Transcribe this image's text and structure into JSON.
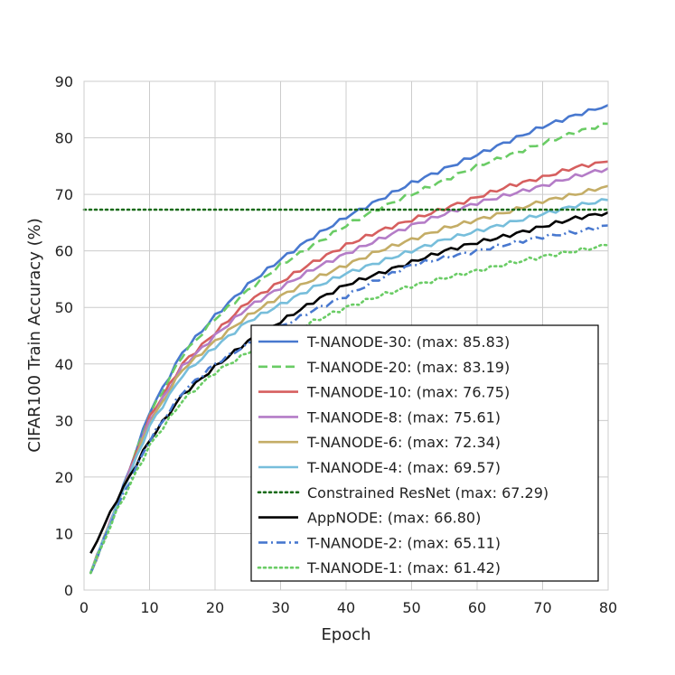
{
  "chart_data": {
    "type": "line",
    "title": "",
    "xlabel": "Epoch",
    "ylabel": "CIFAR100 Train Accuracy (%)",
    "xlim": [
      0,
      80
    ],
    "ylim": [
      0,
      90
    ],
    "xticks": [
      0,
      10,
      20,
      30,
      40,
      50,
      60,
      70,
      80
    ],
    "yticks": [
      0,
      10,
      20,
      30,
      40,
      50,
      60,
      70,
      80,
      90
    ],
    "grid": true,
    "legend_position": "lower-right",
    "x": [
      1,
      5,
      10,
      15,
      20,
      25,
      30,
      35,
      40,
      45,
      50,
      55,
      60,
      65,
      70,
      75,
      80
    ],
    "series": [
      {
        "name": "T-NANODE-30",
        "legend": "T-NANODE-30: (max: 85.83)",
        "color": "#4878cf",
        "dash": "solid",
        "values": [
          3.0,
          15.0,
          31.5,
          42.0,
          48.5,
          54.0,
          58.5,
          62.5,
          66.0,
          69.0,
          72.0,
          74.5,
          77.0,
          79.5,
          82.0,
          84.0,
          85.8
        ]
      },
      {
        "name": "T-NANODE-20",
        "legend": "T-NANODE-20: (max: 83.19)",
        "color": "#6acc65",
        "dash": "dashed",
        "values": [
          3.0,
          15.0,
          31.0,
          41.5,
          48.0,
          53.0,
          57.5,
          61.0,
          64.5,
          67.5,
          70.0,
          72.5,
          75.0,
          77.0,
          79.0,
          81.0,
          82.5
        ]
      },
      {
        "name": "T-NANODE-10",
        "legend": "T-NANODE-10: (max: 76.75)",
        "color": "#d65f5f",
        "dash": "solid",
        "values": [
          3.0,
          15.0,
          30.5,
          40.0,
          45.5,
          51.0,
          54.5,
          58.0,
          61.0,
          63.5,
          65.5,
          67.5,
          69.5,
          71.5,
          73.0,
          74.8,
          75.8
        ]
      },
      {
        "name": "T-NANODE-8",
        "legend": "T-NANODE-8: (max: 75.61)",
        "color": "#b47cc7",
        "dash": "solid",
        "values": [
          3.0,
          15.0,
          30.0,
          39.5,
          45.0,
          50.0,
          53.5,
          56.8,
          59.5,
          62.0,
          64.5,
          66.5,
          68.5,
          70.0,
          71.5,
          73.2,
          74.6
        ]
      },
      {
        "name": "T-NANODE-6",
        "legend": "T-NANODE-6: (max: 72.34)",
        "color": "#c4ad66",
        "dash": "solid",
        "values": [
          3.0,
          15.0,
          29.5,
          39.0,
          44.0,
          48.5,
          52.0,
          55.0,
          57.5,
          60.0,
          62.0,
          64.0,
          65.5,
          67.0,
          68.8,
          70.0,
          71.5
        ]
      },
      {
        "name": "T-NANODE-4",
        "legend": "T-NANODE-4: (max: 69.57)",
        "color": "#77bedb",
        "dash": "solid",
        "values": [
          3.0,
          15.0,
          29.0,
          38.0,
          43.0,
          47.5,
          50.5,
          53.5,
          56.0,
          58.0,
          60.0,
          62.0,
          63.5,
          65.0,
          66.5,
          68.0,
          69.0
        ]
      },
      {
        "name": "Constrained ResNet",
        "legend": "Constrained ResNet (max: 67.29)",
        "color": "#1a6b1a",
        "dash": "dotted",
        "values": [
          67.3,
          67.3,
          67.3,
          67.3,
          67.3,
          67.3,
          67.3,
          67.3,
          67.3,
          67.3,
          67.3,
          67.3,
          67.3,
          67.3,
          67.3,
          67.3,
          67.3
        ]
      },
      {
        "name": "AppNODE",
        "legend": "AppNODE: (max: 66.80)",
        "color": "#000000",
        "dash": "solid",
        "values": [
          6.5,
          16.0,
          26.5,
          34.5,
          39.5,
          44.0,
          47.5,
          51.0,
          54.0,
          56.0,
          58.0,
          60.0,
          61.5,
          62.8,
          64.3,
          65.8,
          66.8
        ]
      },
      {
        "name": "T-NANODE-2",
        "legend": "T-NANODE-2: (max: 65.11)",
        "color": "#4878cf",
        "dash": "dashdot",
        "values": [
          3.0,
          14.5,
          26.5,
          35.0,
          40.0,
          43.5,
          46.5,
          49.5,
          52.0,
          55.0,
          57.5,
          58.8,
          60.0,
          61.3,
          62.5,
          63.3,
          64.5
        ]
      },
      {
        "name": "T-NANODE-1",
        "legend": "T-NANODE-1: (max: 61.42)",
        "color": "#6acc65",
        "dash": "dotted",
        "values": [
          3.0,
          14.0,
          25.5,
          33.5,
          38.5,
          42.0,
          45.0,
          47.5,
          50.0,
          52.0,
          53.8,
          55.2,
          56.5,
          57.8,
          59.0,
          60.0,
          61.0
        ]
      }
    ]
  }
}
